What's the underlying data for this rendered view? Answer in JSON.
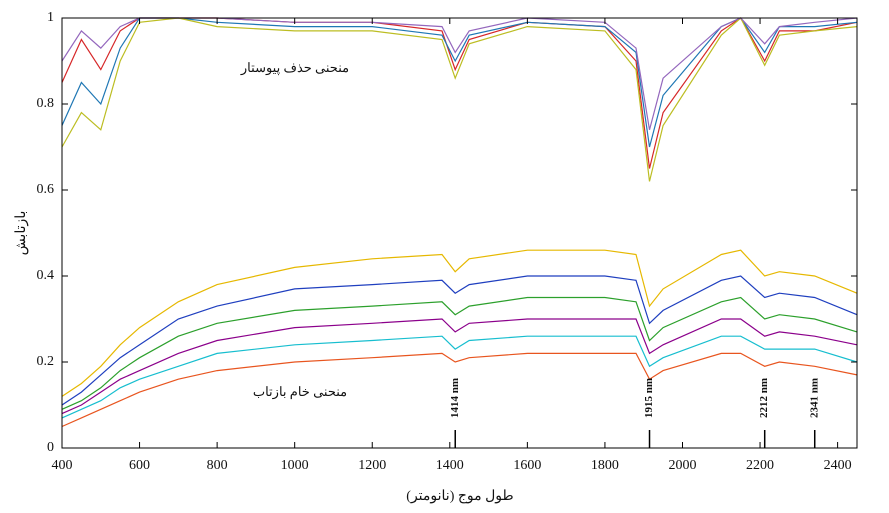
{
  "chart_data": {
    "type": "line",
    "x_label": "طول موج (نانومتر)",
    "y_label": "بازتابش",
    "annotations": [
      "منحنی حذف پیوستار",
      "منحنی خام بازتاب"
    ],
    "markers": [
      {
        "x": 1414,
        "label": "1414 nm"
      },
      {
        "x": 1915,
        "label": "1915 nm"
      },
      {
        "x": 2212,
        "label": "2212 nm"
      },
      {
        "x": 2341,
        "label": "2341 nm"
      }
    ],
    "x": [
      400,
      450,
      500,
      550,
      600,
      700,
      800,
      1000,
      1200,
      1380,
      1414,
      1450,
      1600,
      1800,
      1880,
      1915,
      1950,
      2100,
      2150,
      2212,
      2250,
      2341,
      2450
    ],
    "series": [
      {
        "color": "#e6b800",
        "values": [
          0.12,
          0.15,
          0.19,
          0.24,
          0.28,
          0.34,
          0.38,
          0.42,
          0.44,
          0.45,
          0.41,
          0.44,
          0.46,
          0.46,
          0.45,
          0.33,
          0.37,
          0.45,
          0.46,
          0.4,
          0.41,
          0.4,
          0.36
        ]
      },
      {
        "color": "#1f3fbf",
        "values": [
          0.1,
          0.13,
          0.17,
          0.21,
          0.24,
          0.3,
          0.33,
          0.37,
          0.38,
          0.39,
          0.36,
          0.38,
          0.4,
          0.4,
          0.39,
          0.29,
          0.32,
          0.39,
          0.4,
          0.35,
          0.36,
          0.35,
          0.31
        ]
      },
      {
        "color": "#2ca02c",
        "values": [
          0.09,
          0.11,
          0.14,
          0.18,
          0.21,
          0.26,
          0.29,
          0.32,
          0.33,
          0.34,
          0.31,
          0.33,
          0.35,
          0.35,
          0.34,
          0.25,
          0.28,
          0.34,
          0.35,
          0.3,
          0.31,
          0.3,
          0.27
        ]
      },
      {
        "color": "#8b008b",
        "values": [
          0.08,
          0.1,
          0.13,
          0.16,
          0.18,
          0.22,
          0.25,
          0.28,
          0.29,
          0.3,
          0.27,
          0.29,
          0.3,
          0.3,
          0.3,
          0.22,
          0.24,
          0.3,
          0.3,
          0.26,
          0.27,
          0.26,
          0.24
        ]
      },
      {
        "color": "#17becf",
        "values": [
          0.07,
          0.09,
          0.11,
          0.14,
          0.16,
          0.19,
          0.22,
          0.24,
          0.25,
          0.26,
          0.23,
          0.25,
          0.26,
          0.26,
          0.26,
          0.19,
          0.21,
          0.26,
          0.26,
          0.23,
          0.23,
          0.23,
          0.2
        ]
      },
      {
        "color": "#e8551f",
        "values": [
          0.05,
          0.07,
          0.09,
          0.11,
          0.13,
          0.16,
          0.18,
          0.2,
          0.21,
          0.22,
          0.2,
          0.21,
          0.22,
          0.22,
          0.22,
          0.16,
          0.18,
          0.22,
          0.22,
          0.19,
          0.2,
          0.19,
          0.17
        ]
      },
      {
        "color": "#d62728",
        "values": [
          0.85,
          0.95,
          0.88,
          0.97,
          1,
          1,
          1,
          0.99,
          0.99,
          0.97,
          0.88,
          0.95,
          0.99,
          0.98,
          0.9,
          0.65,
          0.78,
          0.97,
          1,
          0.9,
          0.97,
          0.97,
          0.99
        ]
      },
      {
        "color": "#1f77b4",
        "values": [
          0.75,
          0.85,
          0.8,
          0.93,
          1,
          1,
          0.99,
          0.98,
          0.98,
          0.96,
          0.9,
          0.96,
          0.99,
          0.98,
          0.92,
          0.7,
          0.82,
          0.98,
          1,
          0.92,
          0.98,
          0.98,
          0.99
        ]
      },
      {
        "color": "#bcbd22",
        "values": [
          0.7,
          0.78,
          0.74,
          0.9,
          0.99,
          1,
          0.98,
          0.97,
          0.97,
          0.95,
          0.86,
          0.94,
          0.98,
          0.97,
          0.88,
          0.62,
          0.75,
          0.96,
          1,
          0.89,
          0.96,
          0.97,
          0.98
        ]
      },
      {
        "color": "#9467bd",
        "values": [
          0.9,
          0.97,
          0.93,
          0.98,
          1,
          1,
          1,
          0.99,
          0.99,
          0.98,
          0.92,
          0.97,
          1,
          0.99,
          0.93,
          0.74,
          0.86,
          0.98,
          1,
          0.94,
          0.98,
          0.99,
          1
        ]
      }
    ],
    "xlim": [
      400,
      2450
    ],
    "ylim": [
      0,
      1
    ],
    "xticks": [
      400,
      600,
      800,
      1000,
      1200,
      1400,
      1600,
      1800,
      2000,
      2200,
      2400
    ],
    "yticks": [
      0,
      0.2,
      0.4,
      0.6,
      0.8,
      1
    ],
    "grid": false
  }
}
